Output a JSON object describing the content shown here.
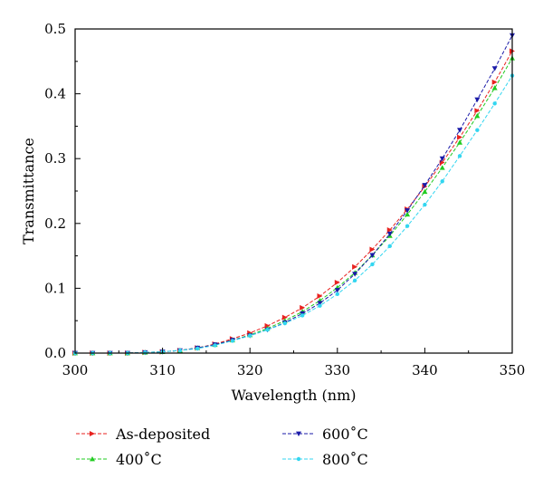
{
  "chart_data": {
    "type": "line",
    "title": "",
    "xlabel": "Wavelength (nm)",
    "ylabel": "Transmittance",
    "xlim": [
      300,
      350
    ],
    "ylim": [
      0,
      0.5
    ],
    "xticks": [
      "300",
      "310",
      "320",
      "330",
      "340",
      "350"
    ],
    "yticks": [
      "0.0",
      "0.1",
      "0.2",
      "0.3",
      "0.4",
      "0.5"
    ],
    "grid": false,
    "legend_position": "bottom, two columns",
    "x": [
      300,
      302,
      304,
      306,
      308,
      310,
      312,
      314,
      316,
      318,
      320,
      322,
      324,
      326,
      328,
      330,
      332,
      334,
      336,
      338,
      340,
      342,
      344,
      346,
      348,
      350
    ],
    "series": [
      {
        "name": "As-deposited",
        "color": "#e8221f",
        "marker": "triangle-right",
        "values": [
          0.0,
          0.0,
          0.0,
          0.0,
          0.001,
          0.002,
          0.004,
          0.008,
          0.014,
          0.022,
          0.031,
          0.042,
          0.055,
          0.07,
          0.088,
          0.109,
          0.133,
          0.16,
          0.19,
          0.222,
          0.257,
          0.294,
          0.333,
          0.374,
          0.418,
          0.466
        ]
      },
      {
        "name": "400˚C",
        "color": "#22cc22",
        "marker": "triangle-up",
        "values": [
          0.0,
          0.0,
          0.0,
          0.0,
          0.001,
          0.002,
          0.004,
          0.008,
          0.013,
          0.02,
          0.028,
          0.038,
          0.05,
          0.064,
          0.081,
          0.101,
          0.124,
          0.151,
          0.181,
          0.214,
          0.249,
          0.286,
          0.325,
          0.366,
          0.409,
          0.455
        ]
      },
      {
        "name": "600˚C",
        "color": "#1a1aa8",
        "marker": "triangle-down",
        "values": [
          0.0,
          0.0,
          0.0,
          0.0,
          0.001,
          0.002,
          0.004,
          0.008,
          0.013,
          0.02,
          0.027,
          0.036,
          0.047,
          0.061,
          0.077,
          0.097,
          0.122,
          0.151,
          0.184,
          0.22,
          0.259,
          0.3,
          0.344,
          0.391,
          0.439,
          0.49
        ]
      },
      {
        "name": "800˚C",
        "color": "#33d6f0",
        "marker": "circle",
        "values": [
          0.0,
          0.0,
          0.0,
          0.0,
          0.001,
          0.002,
          0.004,
          0.007,
          0.012,
          0.019,
          0.027,
          0.036,
          0.046,
          0.058,
          0.073,
          0.091,
          0.112,
          0.137,
          0.165,
          0.196,
          0.229,
          0.265,
          0.304,
          0.344,
          0.385,
          0.428
        ]
      }
    ]
  }
}
